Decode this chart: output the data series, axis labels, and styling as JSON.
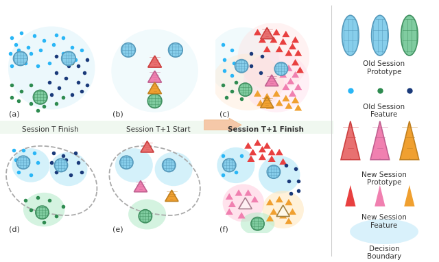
{
  "fig_width": 6.4,
  "fig_height": 3.82,
  "panel_labels": [
    "(a)",
    "(b)",
    "(c)",
    "(d)",
    "(e)",
    "(f)"
  ],
  "row_labels": [
    "Session T Finish",
    "Session T+1 Start",
    "Session T+1 Finish"
  ],
  "colors": {
    "cyan_proto": "#87CEEB",
    "green_proto": "#80CCA0",
    "cyan_dot": "#29B6F6",
    "navy_dot": "#1A3A7A",
    "green_dot": "#2E8B50",
    "olive_dot": "#7A8A30",
    "red_tri": "#E84040",
    "pink_tri": "#F080B0",
    "orange_tri": "#F0A030",
    "bg_blue": "#E0F4FA",
    "bg_red": "#FFE8E0",
    "bg_pink": "#FFE0EE",
    "bg_orange": "#FFF0D0",
    "bg_green": "#E0F0E8",
    "dashed_gray": "#AAAAAA",
    "arrow_fill": "#F5C8A8",
    "text_dark": "#333333",
    "separator": "#CCCCCC"
  }
}
